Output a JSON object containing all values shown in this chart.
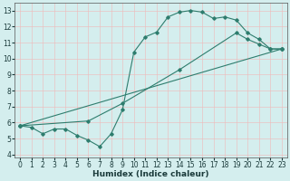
{
  "line1_x": [
    0,
    1,
    2,
    3,
    4,
    5,
    6,
    7,
    8,
    9,
    10,
    11,
    12,
    13,
    14,
    15,
    16,
    17,
    18,
    19,
    20,
    21,
    22,
    23
  ],
  "line1_y": [
    5.8,
    5.7,
    5.3,
    5.6,
    5.6,
    5.2,
    4.9,
    4.5,
    5.3,
    6.8,
    10.4,
    11.35,
    11.65,
    12.6,
    12.9,
    13.0,
    12.9,
    12.5,
    12.6,
    12.4,
    11.6,
    11.2,
    10.6,
    10.6
  ],
  "line2_x": [
    0,
    6,
    9,
    14,
    19,
    20,
    21,
    22,
    23
  ],
  "line2_y": [
    5.8,
    6.1,
    7.2,
    9.3,
    11.6,
    11.2,
    10.9,
    10.6,
    10.6
  ],
  "line3_x": [
    0,
    23
  ],
  "line3_y": [
    5.8,
    10.6
  ],
  "line_color": "#2e7d6e",
  "bg_color": "#d4eeee",
  "grid_color": "#f0b8b8",
  "xlabel": "Humidex (Indice chaleur)",
  "xlim": [
    -0.5,
    23.5
  ],
  "ylim": [
    3.8,
    13.5
  ],
  "xticks": [
    0,
    1,
    2,
    3,
    4,
    5,
    6,
    7,
    8,
    9,
    10,
    11,
    12,
    13,
    14,
    15,
    16,
    17,
    18,
    19,
    20,
    21,
    22,
    23
  ],
  "yticks": [
    4,
    5,
    6,
    7,
    8,
    9,
    10,
    11,
    12,
    13
  ],
  "fontsize_ticks": 5.5,
  "fontsize_label": 6.5,
  "marker": "D",
  "markersize": 1.8,
  "linewidth": 0.8
}
